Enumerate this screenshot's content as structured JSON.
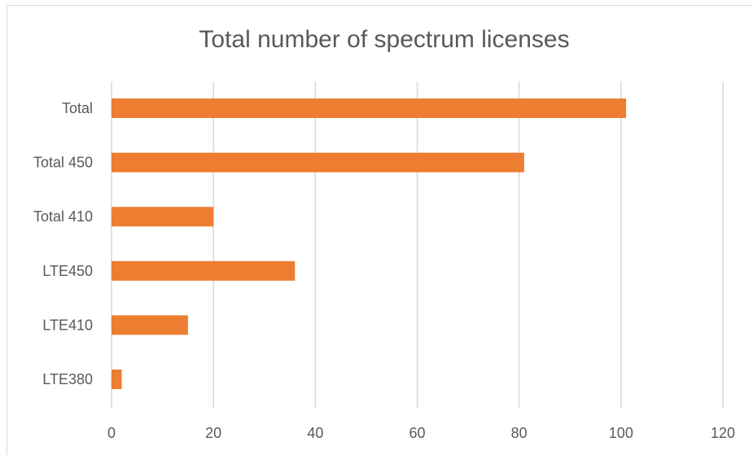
{
  "chart_data": {
    "type": "bar",
    "orientation": "horizontal",
    "title": "Total number of spectrum licenses",
    "xlabel": "",
    "ylabel": "",
    "categories": [
      "Total",
      "Total 450",
      "Total 410",
      "LTE450",
      "LTE410",
      "LTE380"
    ],
    "values": [
      101,
      81,
      20,
      36,
      15,
      2
    ],
    "xlim": [
      0,
      120
    ],
    "xticks": [
      "0",
      "20",
      "40",
      "60",
      "80",
      "100",
      "120"
    ],
    "grid": "vertical",
    "legend": "none",
    "bar_color": "#ED7D31"
  }
}
